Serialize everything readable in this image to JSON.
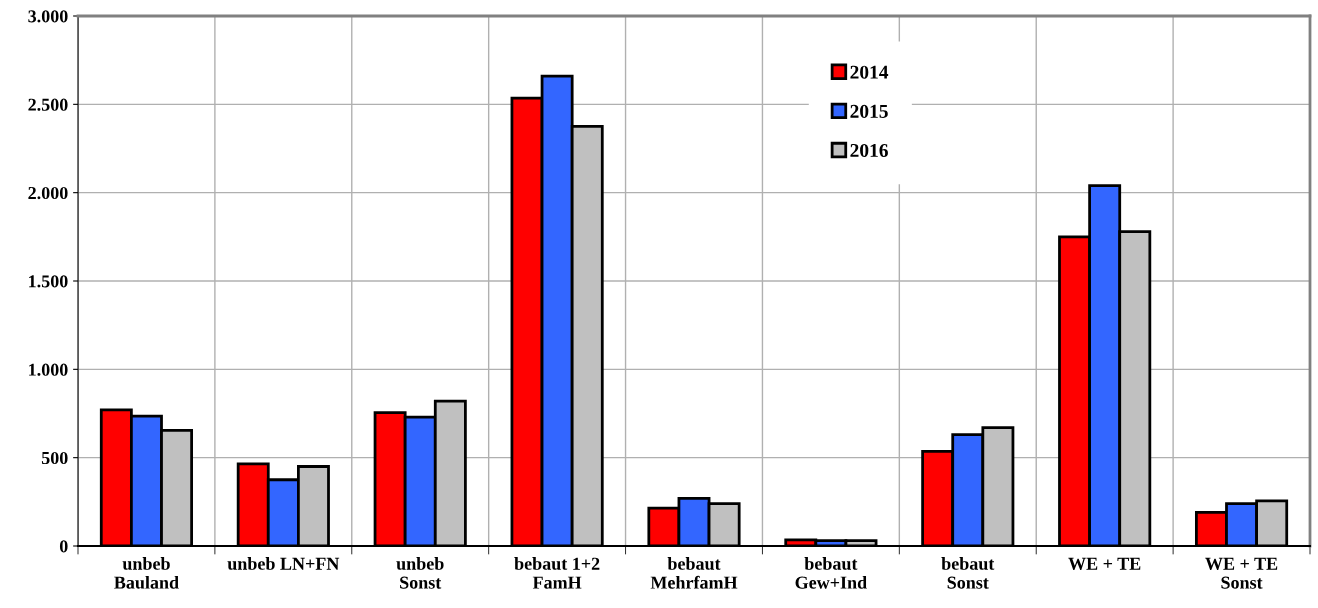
{
  "chart_data": {
    "type": "bar",
    "categories": [
      "unbeb\nBauland",
      "unbeb LN+FN",
      "unbeb\nSonst",
      "bebaut 1+2\nFamH",
      "bebaut\nMehrfamH",
      "bebaut\nGew+Ind",
      "bebaut\nSonst",
      "WE + TE",
      "WE + TE\nSonst"
    ],
    "series": [
      {
        "name": "2014",
        "color": "#ff0000",
        "values": [
          770,
          465,
          755,
          2535,
          215,
          35,
          535,
          1750,
          190
        ]
      },
      {
        "name": "2015",
        "color": "#3366ff",
        "values": [
          735,
          375,
          730,
          2660,
          270,
          30,
          630,
          2040,
          240
        ]
      },
      {
        "name": "2016",
        "color": "#c0c0c0",
        "values": [
          655,
          450,
          820,
          2375,
          240,
          30,
          670,
          1780,
          255
        ]
      }
    ],
    "ylim": [
      0,
      3000
    ],
    "yticks": [
      0,
      500,
      {
        "value": 1000,
        "label": "1.000"
      },
      {
        "value": 1500,
        "label": "1.500"
      },
      {
        "value": 2000,
        "label": "2.000"
      },
      {
        "value": 2500,
        "label": "2.500"
      },
      {
        "value": 3000,
        "label": "3.000"
      }
    ],
    "grid": true,
    "legend": "top"
  }
}
